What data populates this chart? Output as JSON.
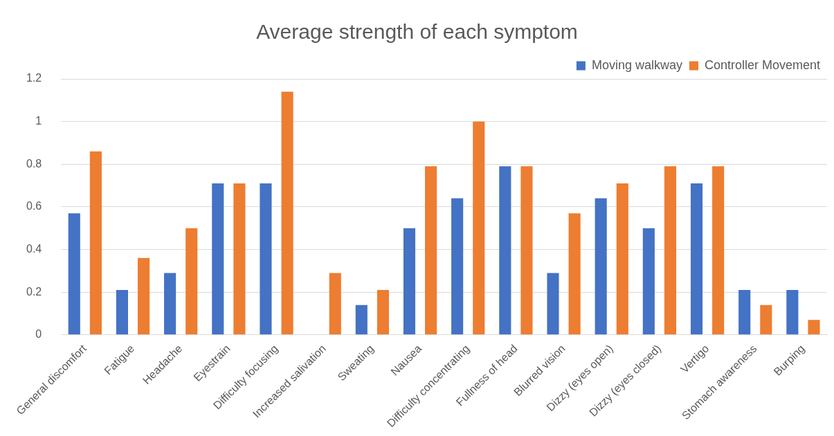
{
  "chart_data": {
    "type": "bar",
    "title": "Average strength of each symptom",
    "categories": [
      "General discomfort",
      "Fatigue",
      "Headache",
      "Eyestrain",
      "Difficulty focusing",
      "Increased salivation",
      "Sweating",
      "Nausea",
      "Difficulty concentrating",
      "Fullness of head",
      "Blurred vision",
      "Dizzy (eyes open)",
      "Dizzy (eyes closed)",
      "Vertigo",
      "Stomach awareness",
      "Burping"
    ],
    "series": [
      {
        "name": "Moving walkway",
        "color": "#4472c4",
        "values": [
          0.57,
          0.21,
          0.29,
          0.71,
          0.71,
          0,
          0.14,
          0.5,
          0.64,
          0.79,
          0.29,
          0.64,
          0.5,
          0.71,
          0.21,
          0.21
        ]
      },
      {
        "name": "Controller Movement",
        "color": "#ed7d31",
        "values": [
          0.86,
          0.36,
          0.5,
          0.71,
          1.14,
          0.29,
          0.21,
          0.79,
          1,
          0.79,
          0.57,
          0.71,
          0.79,
          0.79,
          0.14,
          0.07
        ]
      }
    ],
    "ylim": [
      0,
      1.2
    ],
    "yticks": [
      0,
      0.2,
      0.4,
      0.6,
      0.8,
      1,
      1.2
    ],
    "grid": "y",
    "legend": "top right"
  }
}
